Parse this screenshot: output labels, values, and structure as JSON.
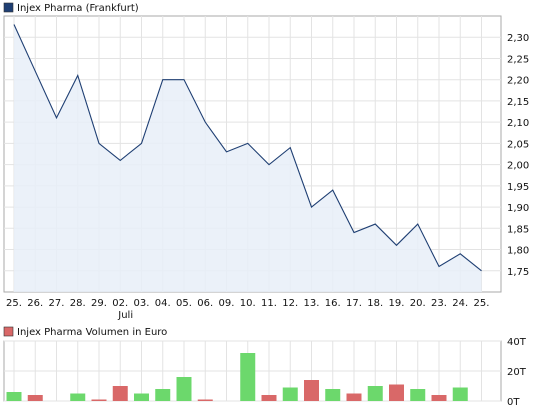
{
  "chart_data": [
    {
      "type": "area",
      "legend": {
        "label": "Injex Pharma (Frankfurt)",
        "color": "#1f3f73"
      },
      "x_tick_labels": [
        "25.",
        "26.",
        "27.",
        "28.",
        "29.",
        "02.",
        "03.",
        "04.",
        "05.",
        "06.",
        "09.",
        "10.",
        "11.",
        "12.",
        "13.",
        "16.",
        "17.",
        "18.",
        "19.",
        "20.",
        "23.",
        "24.",
        "25."
      ],
      "x_sub_labels": [
        "",
        "",
        "",
        "",
        "",
        "Juli",
        "",
        "",
        "",
        "",
        "",
        "",
        "",
        "",
        "",
        "",
        "",
        "",
        "",
        "",
        "",
        "",
        ""
      ],
      "series": [
        {
          "values": [
            2.33,
            2.22,
            2.11,
            2.21,
            2.05,
            2.01,
            2.05,
            2.2,
            2.2,
            2.1,
            2.03,
            2.05,
            2.0,
            2.04,
            1.9,
            1.94,
            1.84,
            1.86,
            1.81,
            1.86,
            1.76,
            1.79,
            1.75
          ]
        }
      ],
      "y_tick_labels": [
        "2,30",
        "2,25",
        "2,20",
        "2,15",
        "2,10",
        "2,05",
        "2,00",
        "1,95",
        "1,90",
        "1,85",
        "1,80",
        "1,75"
      ],
      "y_tick_values": [
        2.3,
        2.25,
        2.2,
        2.15,
        2.1,
        2.05,
        2.0,
        1.95,
        1.9,
        1.85,
        1.8,
        1.75
      ],
      "ylim": [
        1.7,
        2.35
      ],
      "grid": true,
      "line_color": "#1f3f73",
      "fill_color": "#e8eef8"
    },
    {
      "type": "bar",
      "legend": {
        "label": "Injex Pharma Volumen in Euro",
        "color": "#d96868"
      },
      "values": [
        6,
        4,
        0,
        5,
        1,
        10,
        5,
        8,
        16,
        1,
        0,
        32,
        4,
        9,
        14,
        8,
        5,
        10,
        11,
        8,
        4,
        9,
        0
      ],
      "directions": [
        "up",
        "down",
        "none",
        "up",
        "down",
        "down",
        "up",
        "up",
        "up",
        "down",
        "none",
        "up",
        "down",
        "up",
        "down",
        "up",
        "down",
        "up",
        "down",
        "up",
        "down",
        "up",
        "none"
      ],
      "y_tick_labels": [
        "40T",
        "20T",
        "0T"
      ],
      "y_tick_values": [
        40,
        20,
        0
      ],
      "ylim": [
        0,
        40
      ],
      "grid": true,
      "up_color": "#6cd86c",
      "down_color": "#d96868"
    }
  ]
}
